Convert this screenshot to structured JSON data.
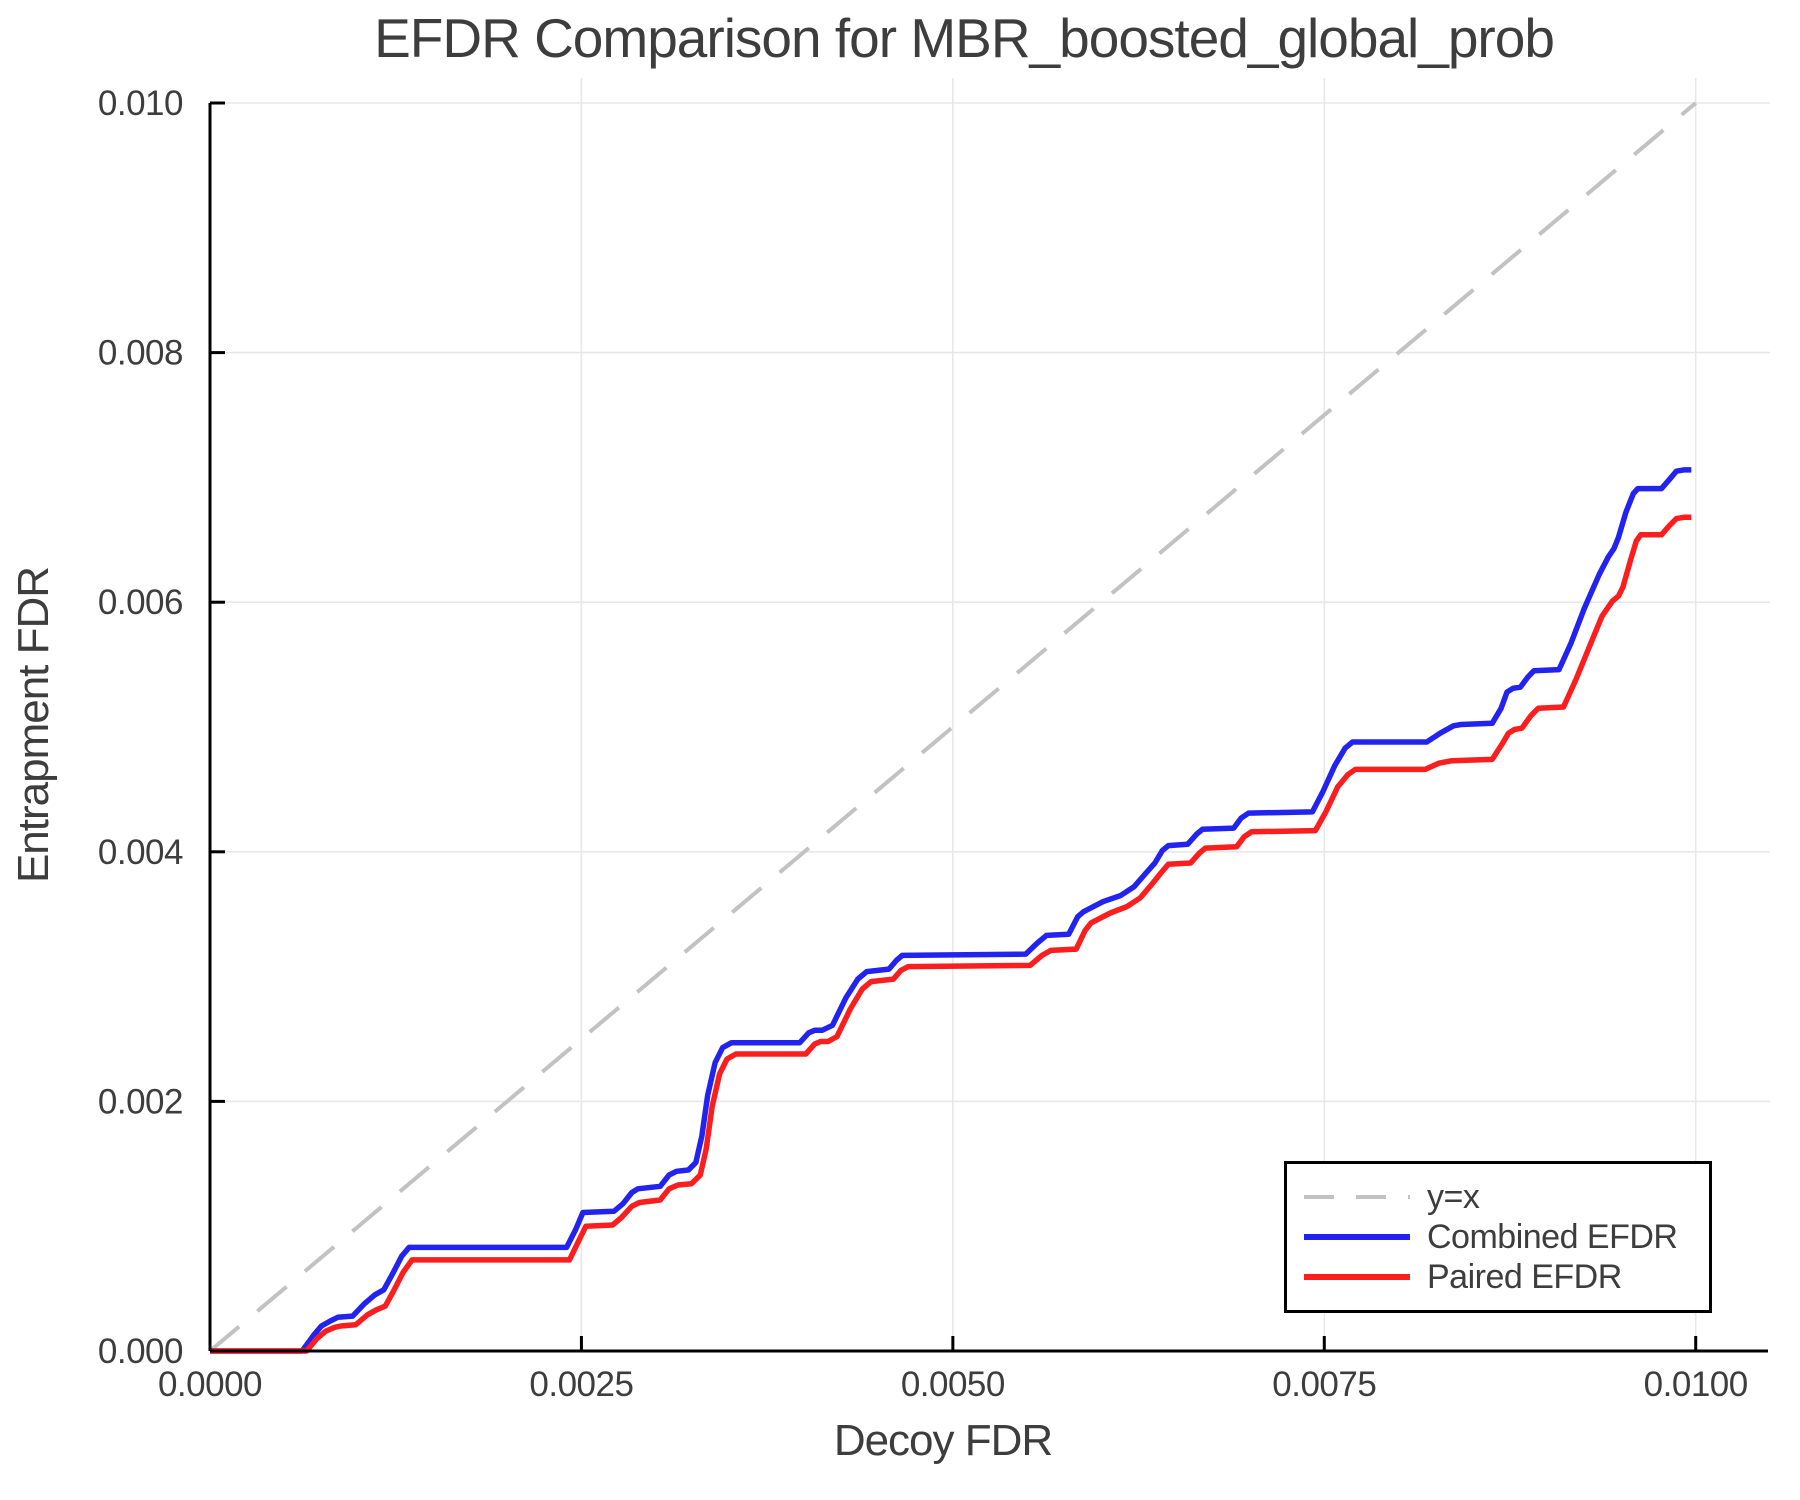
{
  "chart_data": {
    "type": "line",
    "title": "EFDR Comparison for MBR_boosted_global_prob",
    "xlabel": "Decoy FDR",
    "ylabel": "Entrapment FDR",
    "xlim": [
      0,
      0.0105
    ],
    "ylim": [
      0,
      0.01
    ],
    "grid": true,
    "legend_position": "lower right",
    "x_ticks": [
      0.0,
      0.0025,
      0.005,
      0.0075,
      0.01
    ],
    "x_tick_labels": [
      "0.0000",
      "0.0025",
      "0.0050",
      "0.0075",
      "0.0100"
    ],
    "y_ticks": [
      0.0,
      0.002,
      0.004,
      0.006,
      0.008,
      0.01
    ],
    "y_tick_labels": [
      "0.000",
      "0.002",
      "0.004",
      "0.006",
      "0.008",
      "0.010"
    ],
    "series": [
      {
        "name": "y=x",
        "style": "dashed",
        "color": "#c2c2c2",
        "points": [
          [
            0,
            0
          ],
          [
            0.01,
            0.01
          ]
        ]
      },
      {
        "name": "Combined EFDR",
        "style": "solid",
        "color": "#2323f0",
        "points": [
          [
            0.0,
            0.0
          ],
          [
            0.00062,
            0.0
          ],
          [
            0.0007,
            0.00013
          ],
          [
            0.00075,
            0.0002
          ],
          [
            0.00081,
            0.00024
          ],
          [
            0.00086,
            0.00027
          ],
          [
            0.00096,
            0.00028
          ],
          [
            0.00104,
            0.00038
          ],
          [
            0.00111,
            0.00045
          ],
          [
            0.00117,
            0.00049
          ],
          [
            0.00123,
            0.00062
          ],
          [
            0.00129,
            0.00076
          ],
          [
            0.00134,
            0.00083
          ],
          [
            0.0024,
            0.00083
          ],
          [
            0.00246,
            0.00097
          ],
          [
            0.00251,
            0.00111
          ],
          [
            0.00272,
            0.00112
          ],
          [
            0.00278,
            0.00118
          ],
          [
            0.00284,
            0.00127
          ],
          [
            0.00288,
            0.0013
          ],
          [
            0.00303,
            0.00132
          ],
          [
            0.00309,
            0.00141
          ],
          [
            0.00314,
            0.00144
          ],
          [
            0.00322,
            0.00145
          ],
          [
            0.00327,
            0.00151
          ],
          [
            0.00331,
            0.00172
          ],
          [
            0.00335,
            0.00205
          ],
          [
            0.0034,
            0.00231
          ],
          [
            0.00345,
            0.00243
          ],
          [
            0.00351,
            0.00247
          ],
          [
            0.00397,
            0.00247
          ],
          [
            0.00403,
            0.00255
          ],
          [
            0.00407,
            0.00257
          ],
          [
            0.00412,
            0.00257
          ],
          [
            0.00419,
            0.00261
          ],
          [
            0.00428,
            0.00283
          ],
          [
            0.00436,
            0.00298
          ],
          [
            0.00442,
            0.00304
          ],
          [
            0.00457,
            0.00306
          ],
          [
            0.00462,
            0.00313
          ],
          [
            0.00466,
            0.00317
          ],
          [
            0.00549,
            0.00318
          ],
          [
            0.00557,
            0.00327
          ],
          [
            0.00563,
            0.00333
          ],
          [
            0.00578,
            0.00334
          ],
          [
            0.00584,
            0.00348
          ],
          [
            0.00588,
            0.00352
          ],
          [
            0.00601,
            0.0036
          ],
          [
            0.00613,
            0.00365
          ],
          [
            0.00622,
            0.00372
          ],
          [
            0.0063,
            0.00383
          ],
          [
            0.00636,
            0.00391
          ],
          [
            0.00641,
            0.00401
          ],
          [
            0.00645,
            0.00405
          ],
          [
            0.00658,
            0.00406
          ],
          [
            0.00664,
            0.00414
          ],
          [
            0.00668,
            0.00418
          ],
          [
            0.00689,
            0.00419
          ],
          [
            0.00694,
            0.00427
          ],
          [
            0.00699,
            0.00431
          ],
          [
            0.00742,
            0.00432
          ],
          [
            0.00749,
            0.00448
          ],
          [
            0.00757,
            0.00469
          ],
          [
            0.00764,
            0.00483
          ],
          [
            0.00769,
            0.00488
          ],
          [
            0.00819,
            0.00488
          ],
          [
            0.00828,
            0.00495
          ],
          [
            0.00837,
            0.00501
          ],
          [
            0.00842,
            0.00502
          ],
          [
            0.00863,
            0.00503
          ],
          [
            0.00869,
            0.00515
          ],
          [
            0.00873,
            0.00528
          ],
          [
            0.00877,
            0.00531
          ],
          [
            0.00882,
            0.00532
          ],
          [
            0.00887,
            0.0054
          ],
          [
            0.00891,
            0.00545
          ],
          [
            0.00908,
            0.00546
          ],
          [
            0.00916,
            0.00567
          ],
          [
            0.00925,
            0.00595
          ],
          [
            0.00935,
            0.00622
          ],
          [
            0.00941,
            0.00636
          ],
          [
            0.00945,
            0.00643
          ],
          [
            0.00948,
            0.00652
          ],
          [
            0.00953,
            0.00672
          ],
          [
            0.00958,
            0.00687
          ],
          [
            0.00961,
            0.00691
          ],
          [
            0.00977,
            0.00691
          ],
          [
            0.00982,
            0.00698
          ],
          [
            0.00987,
            0.00705
          ],
          [
            0.00992,
            0.00706
          ],
          [
            0.00997,
            0.00706
          ]
        ]
      },
      {
        "name": "Paired EFDR",
        "style": "solid",
        "color": "#fa1e1e",
        "points": [
          [
            0.0,
            0.0
          ],
          [
            0.00065,
            0.0
          ],
          [
            0.00072,
            0.0001
          ],
          [
            0.00078,
            0.00016
          ],
          [
            0.00084,
            0.00019
          ],
          [
            0.00088,
            0.0002
          ],
          [
            0.00098,
            0.00021
          ],
          [
            0.00106,
            0.00029
          ],
          [
            0.00112,
            0.00033
          ],
          [
            0.00118,
            0.00036
          ],
          [
            0.00124,
            0.00049
          ],
          [
            0.0013,
            0.00063
          ],
          [
            0.00136,
            0.00073
          ],
          [
            0.00242,
            0.00073
          ],
          [
            0.00248,
            0.00088
          ],
          [
            0.00253,
            0.001
          ],
          [
            0.00271,
            0.00101
          ],
          [
            0.00277,
            0.00107
          ],
          [
            0.00284,
            0.00116
          ],
          [
            0.00289,
            0.00119
          ],
          [
            0.00303,
            0.00121
          ],
          [
            0.00309,
            0.0013
          ],
          [
            0.00315,
            0.00133
          ],
          [
            0.00324,
            0.00134
          ],
          [
            0.0033,
            0.00141
          ],
          [
            0.00334,
            0.00162
          ],
          [
            0.00338,
            0.00196
          ],
          [
            0.00343,
            0.00222
          ],
          [
            0.00348,
            0.00234
          ],
          [
            0.00354,
            0.00238
          ],
          [
            0.00401,
            0.00238
          ],
          [
            0.00407,
            0.00246
          ],
          [
            0.00411,
            0.00248
          ],
          [
            0.00416,
            0.00248
          ],
          [
            0.00422,
            0.00252
          ],
          [
            0.00431,
            0.00274
          ],
          [
            0.00439,
            0.0029
          ],
          [
            0.00445,
            0.00296
          ],
          [
            0.0046,
            0.00298
          ],
          [
            0.00465,
            0.00305
          ],
          [
            0.0047,
            0.00308
          ],
          [
            0.00552,
            0.00309
          ],
          [
            0.0056,
            0.00317
          ],
          [
            0.00566,
            0.00321
          ],
          [
            0.00583,
            0.00322
          ],
          [
            0.00589,
            0.00337
          ],
          [
            0.00593,
            0.00343
          ],
          [
            0.00606,
            0.00351
          ],
          [
            0.00617,
            0.00356
          ],
          [
            0.00626,
            0.00363
          ],
          [
            0.00634,
            0.00374
          ],
          [
            0.0064,
            0.00383
          ],
          [
            0.00645,
            0.0039
          ],
          [
            0.0066,
            0.00391
          ],
          [
            0.00666,
            0.00399
          ],
          [
            0.0067,
            0.00403
          ],
          [
            0.00691,
            0.00404
          ],
          [
            0.00696,
            0.00412
          ],
          [
            0.00701,
            0.00416
          ],
          [
            0.00744,
            0.00417
          ],
          [
            0.00751,
            0.00432
          ],
          [
            0.00759,
            0.00452
          ],
          [
            0.00766,
            0.00462
          ],
          [
            0.00771,
            0.00466
          ],
          [
            0.00818,
            0.00466
          ],
          [
            0.00827,
            0.00471
          ],
          [
            0.00836,
            0.00473
          ],
          [
            0.00863,
            0.00474
          ],
          [
            0.0087,
            0.00487
          ],
          [
            0.00874,
            0.00495
          ],
          [
            0.00878,
            0.00498
          ],
          [
            0.00883,
            0.00499
          ],
          [
            0.00889,
            0.00509
          ],
          [
            0.00894,
            0.00515
          ],
          [
            0.00911,
            0.00516
          ],
          [
            0.00919,
            0.00537
          ],
          [
            0.00928,
            0.00563
          ],
          [
            0.00937,
            0.00589
          ],
          [
            0.00944,
            0.00601
          ],
          [
            0.00948,
            0.00605
          ],
          [
            0.00951,
            0.00612
          ],
          [
            0.00956,
            0.00633
          ],
          [
            0.0096,
            0.00649
          ],
          [
            0.00963,
            0.00654
          ],
          [
            0.00977,
            0.00654
          ],
          [
            0.00982,
            0.00661
          ],
          [
            0.00987,
            0.00667
          ],
          [
            0.00992,
            0.00668
          ],
          [
            0.00997,
            0.00668
          ]
        ]
      }
    ]
  },
  "colors": {
    "text": "#3d3d3d",
    "grid": "#e8e8e8",
    "spine": "#000000",
    "identity_line": "#c2c2c2",
    "combined": "#2323f0",
    "paired": "#fa1e1e",
    "background": "#ffffff"
  }
}
